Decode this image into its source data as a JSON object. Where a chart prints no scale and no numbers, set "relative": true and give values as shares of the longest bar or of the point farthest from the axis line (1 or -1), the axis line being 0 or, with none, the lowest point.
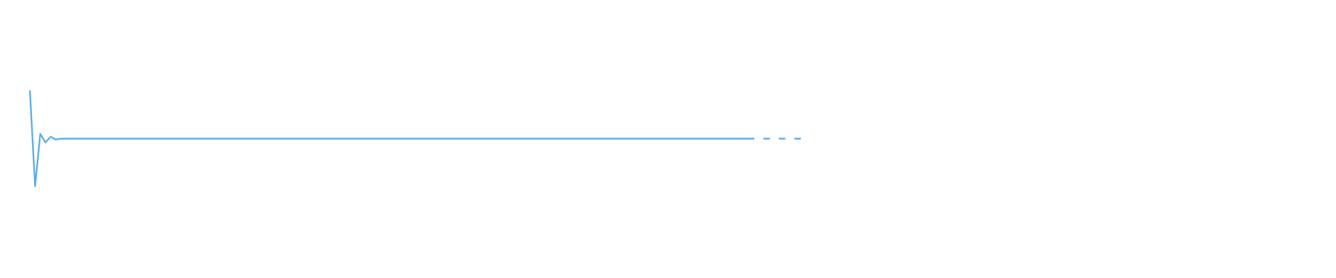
{
  "chart_data": {
    "type": "line",
    "relative": true,
    "categories": [
      null,
      null,
      null,
      null,
      null,
      null,
      null,
      null,
      null,
      null,
      null,
      null,
      null,
      null,
      null,
      null,
      null,
      null,
      null,
      null,
      null,
      null,
      null,
      null,
      null,
      null,
      null,
      null,
      null,
      null,
      null,
      null,
      null,
      null,
      null,
      null,
      null,
      null,
      null,
      null,
      null,
      null,
      null,
      null,
      null,
      null,
      null,
      null,
      null,
      null,
      null,
      null,
      null,
      null,
      null,
      null,
      null,
      null,
      null,
      null,
      null,
      null,
      null,
      null,
      null,
      null,
      null,
      null,
      null,
      null,
      null,
      null,
      null,
      null,
      null,
      null,
      null,
      null,
      null,
      null,
      null,
      null,
      null,
      null,
      null,
      null,
      null,
      null,
      null,
      null,
      null,
      null,
      null,
      null,
      null,
      null,
      null,
      null,
      null,
      null,
      null,
      null,
      null,
      null,
      null,
      null,
      null,
      null,
      null,
      null,
      null,
      null,
      null,
      null,
      null,
      null,
      null,
      null,
      null,
      null,
      null,
      null,
      null,
      null,
      null,
      null,
      null,
      null,
      null,
      null,
      null,
      null,
      null,
      null,
      null,
      null,
      null,
      null,
      null,
      null,
      null,
      null,
      null,
      null,
      null,
      null,
      null,
      null,
      null,
      null
    ],
    "series": [
      {
        "color": "#5dade2",
        "values": [
          1,
          0,
          0.55,
          0.46,
          0.52,
          0.49,
          0.5,
          0.5,
          0.5,
          0.5,
          0.5,
          0.5,
          0.5,
          0.5,
          0.5,
          0.5,
          0.5,
          0.5,
          0.5,
          0.5,
          0.5,
          0.5,
          0.5,
          0.5,
          0.5,
          0.5,
          0.5,
          0.5,
          0.5,
          0.5,
          0.5,
          0.5,
          0.5,
          0.5,
          0.5,
          0.5,
          0.5,
          0.5,
          0.5,
          0.5,
          0.5,
          0.5,
          0.5,
          0.5,
          0.5,
          0.5,
          0.5,
          0.5,
          0.5,
          0.5,
          0.5,
          0.5,
          0.5,
          0.5,
          0.5,
          0.5,
          0.5,
          0.5,
          0.5,
          0.5,
          0.5,
          0.5,
          0.5,
          0.5,
          0.5,
          0.5,
          0.5,
          0.5,
          0.5,
          0.5,
          0.5,
          0.5,
          0.5,
          0.5,
          0.5,
          0.5,
          0.5,
          0.5,
          0.5,
          0.5,
          0.5,
          0.5,
          0.5,
          0.5,
          0.5,
          0.5,
          0.5,
          0.5,
          0.5,
          0.5,
          0.5,
          0.5,
          0.5,
          0.5,
          0.5,
          0.5,
          0.5,
          0.5,
          0.5,
          0.5,
          0.5,
          0.5,
          0.5,
          0.5,
          0.5,
          0.5,
          0.5,
          0.5,
          0.5,
          0.5,
          0.5,
          0.5,
          0.5,
          0.5,
          0.5,
          0.5,
          0.5,
          0.5,
          0.5,
          0.5,
          0.5,
          0.5,
          0.5,
          0.5,
          0.5,
          0.5,
          0.5,
          0.5,
          0.5,
          0.5,
          0.5,
          0.5,
          0.5,
          0.5,
          0.5,
          0.5,
          0.5,
          0.5,
          0.5,
          0.5,
          0.5,
          null,
          0.5,
          0.5,
          null,
          0.5,
          0.5,
          null,
          0.5,
          0.5
        ]
      }
    ]
  }
}
